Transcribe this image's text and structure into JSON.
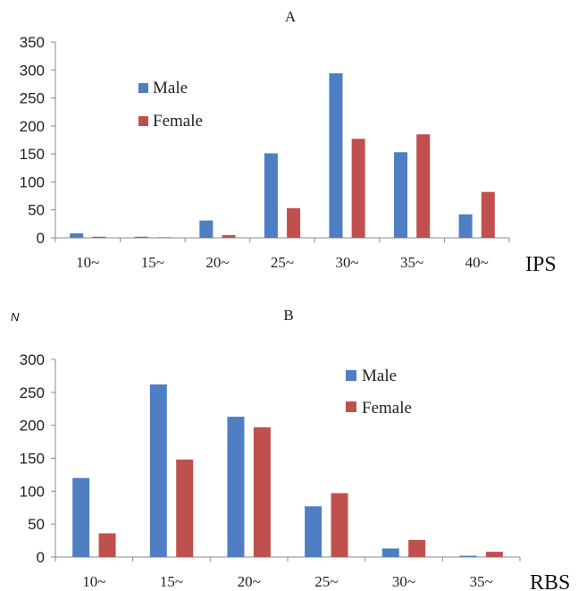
{
  "colors": {
    "male": "#4F7EC2",
    "female": "#C0504D",
    "axis": "#888888"
  },
  "chart_data": [
    {
      "type": "bar",
      "title": "A",
      "xlabel": "IPS",
      "ylabel": "",
      "categories": [
        "10~",
        "15~",
        "20~",
        "25~",
        "30~",
        "35~",
        "40~"
      ],
      "series": [
        {
          "name": "Male",
          "values": [
            8,
            2,
            31,
            151,
            294,
            153,
            42
          ]
        },
        {
          "name": "Female",
          "values": [
            2,
            1,
            5,
            53,
            177,
            185,
            82
          ]
        }
      ],
      "ylim": [
        0,
        350
      ],
      "yticks": [
        0,
        50,
        100,
        150,
        200,
        250,
        300,
        350
      ],
      "legend": "upper-left",
      "grid": false
    },
    {
      "type": "bar",
      "title": "B",
      "xlabel": "RBS",
      "ylabel": "N",
      "categories": [
        "10~",
        "15~",
        "20~",
        "25~",
        "30~",
        "35~"
      ],
      "series": [
        {
          "name": "Male",
          "values": [
            120,
            262,
            213,
            77,
            13,
            2
          ]
        },
        {
          "name": "Female",
          "values": [
            36,
            148,
            197,
            97,
            26,
            8
          ]
        }
      ],
      "ylim": [
        0,
        300
      ],
      "yticks": [
        0,
        50,
        100,
        150,
        200,
        250,
        300
      ],
      "legend": "upper-right",
      "grid": false
    }
  ]
}
